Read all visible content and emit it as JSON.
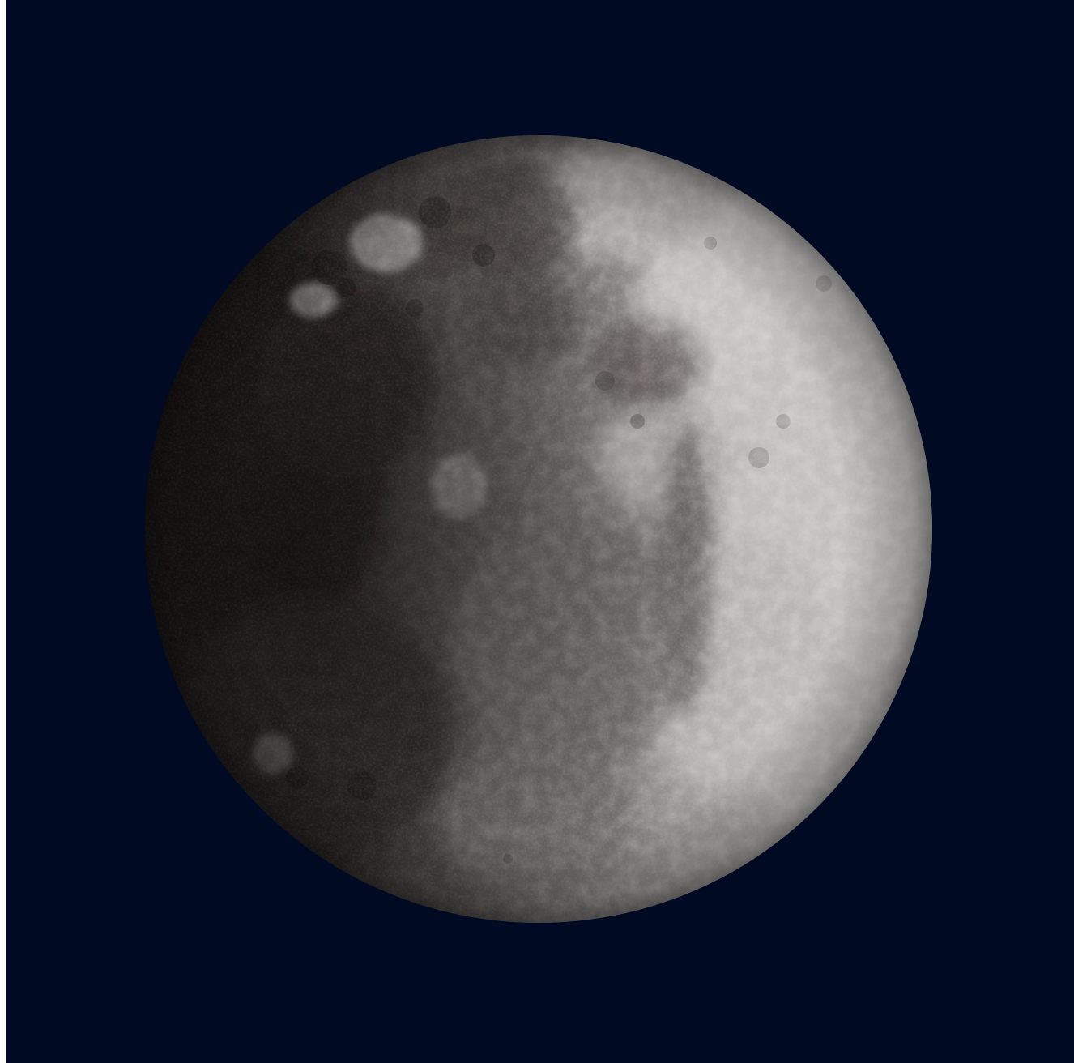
{
  "scene": {
    "subject": "moon",
    "colors": {
      "background": "#000a22",
      "moon_light": "#c8c8c6",
      "moon_mid": "#8e8b88",
      "moon_dark": "#2b2826",
      "frame": "#ffffff"
    }
  }
}
